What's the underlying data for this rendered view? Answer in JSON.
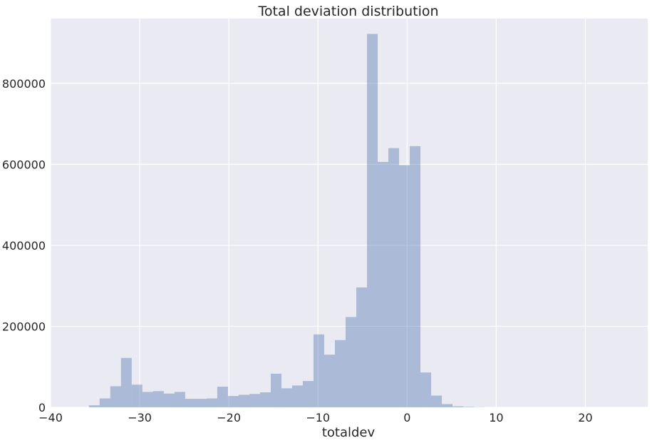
{
  "chart_data": {
    "type": "bar",
    "title": "Total deviation distribution",
    "xlabel": "totaldev",
    "ylabel": "",
    "xlim": [
      -40,
      27
    ],
    "ylim": [
      0,
      960000
    ],
    "grid": true,
    "xticks": [
      -40,
      -30,
      -20,
      -10,
      0,
      10,
      20
    ],
    "xtick_labels": [
      "−40",
      "−30",
      "−20",
      "−10",
      "0",
      "10",
      "20"
    ],
    "yticks": [
      0,
      200000,
      400000,
      600000,
      800000
    ],
    "ytick_labels": [
      "0",
      "200000",
      "400000",
      "600000",
      "800000"
    ],
    "bar_color": "#4c72b0",
    "bar_opacity": 0.4,
    "background_color": "#eaeaf2",
    "grid_color": "#ffffff",
    "bins": [
      {
        "x0": -35.7,
        "x1": -34.5,
        "count": 5000
      },
      {
        "x0": -34.5,
        "x1": -33.3,
        "count": 22000
      },
      {
        "x0": -33.3,
        "x1": -32.1,
        "count": 52000
      },
      {
        "x0": -32.1,
        "x1": -30.9,
        "count": 122000
      },
      {
        "x0": -30.9,
        "x1": -29.7,
        "count": 56000
      },
      {
        "x0": -29.7,
        "x1": -28.5,
        "count": 38000
      },
      {
        "x0": -28.5,
        "x1": -27.3,
        "count": 40000
      },
      {
        "x0": -27.3,
        "x1": -26.1,
        "count": 34000
      },
      {
        "x0": -26.1,
        "x1": -24.9,
        "count": 38000
      },
      {
        "x0": -24.9,
        "x1": -23.7,
        "count": 21000
      },
      {
        "x0": -23.7,
        "x1": -22.5,
        "count": 21000
      },
      {
        "x0": -22.5,
        "x1": -21.3,
        "count": 22000
      },
      {
        "x0": -21.3,
        "x1": -20.1,
        "count": 51000
      },
      {
        "x0": -20.1,
        "x1": -18.9,
        "count": 28000
      },
      {
        "x0": -18.9,
        "x1": -17.7,
        "count": 31000
      },
      {
        "x0": -17.7,
        "x1": -16.5,
        "count": 33000
      },
      {
        "x0": -16.5,
        "x1": -15.3,
        "count": 37000
      },
      {
        "x0": -15.3,
        "x1": -14.1,
        "count": 83000
      },
      {
        "x0": -14.1,
        "x1": -12.9,
        "count": 47000
      },
      {
        "x0": -12.9,
        "x1": -11.7,
        "count": 54000
      },
      {
        "x0": -11.7,
        "x1": -10.5,
        "count": 65000
      },
      {
        "x0": -10.5,
        "x1": -9.3,
        "count": 180000
      },
      {
        "x0": -9.3,
        "x1": -8.1,
        "count": 130000
      },
      {
        "x0": -8.1,
        "x1": -6.9,
        "count": 166000
      },
      {
        "x0": -6.9,
        "x1": -5.7,
        "count": 223000
      },
      {
        "x0": -5.7,
        "x1": -4.5,
        "count": 296000
      },
      {
        "x0": -4.5,
        "x1": -3.3,
        "count": 922000
      },
      {
        "x0": -3.3,
        "x1": -2.1,
        "count": 606000
      },
      {
        "x0": -2.1,
        "x1": -0.9,
        "count": 640000
      },
      {
        "x0": -0.9,
        "x1": 0.3,
        "count": 598000
      },
      {
        "x0": 0.3,
        "x1": 1.5,
        "count": 645000
      },
      {
        "x0": 1.5,
        "x1": 2.7,
        "count": 86000
      },
      {
        "x0": 2.7,
        "x1": 3.9,
        "count": 29000
      },
      {
        "x0": 3.9,
        "x1": 5.1,
        "count": 8000
      },
      {
        "x0": 5.1,
        "x1": 6.3,
        "count": 2500
      },
      {
        "x0": 6.3,
        "x1": 7.5,
        "count": 1200
      },
      {
        "x0": 7.5,
        "x1": 8.7,
        "count": 400
      }
    ]
  }
}
